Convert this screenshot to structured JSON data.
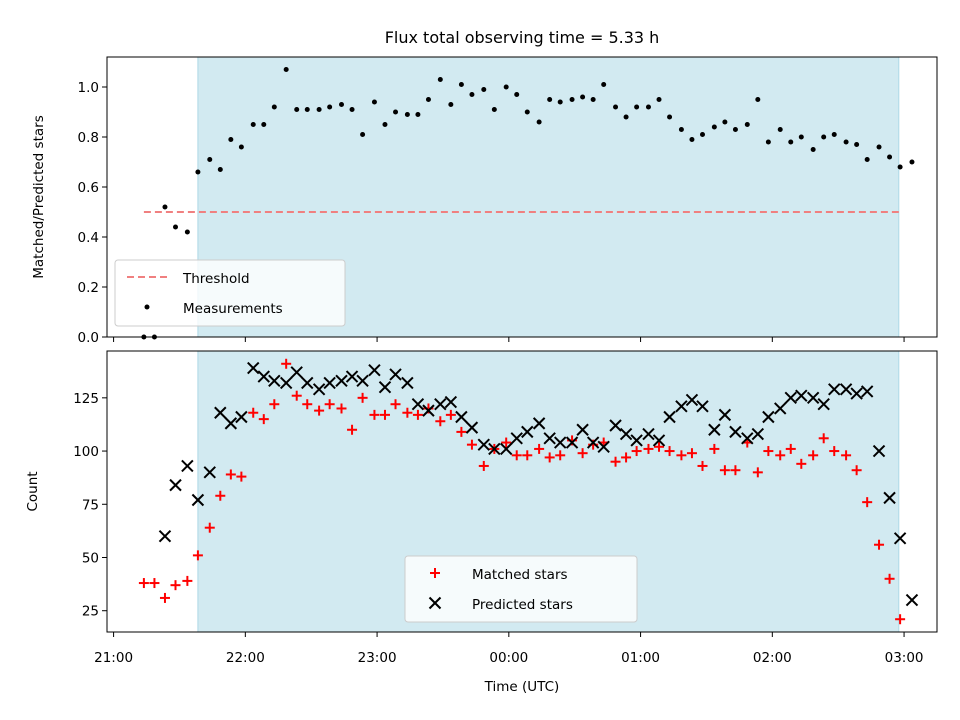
{
  "chart_data": [
    {
      "type": "scatter",
      "title": "Flux total observing time = 5.33 h",
      "xlabel": "",
      "ylabel": "Matched/Predicted stars",
      "ylim": [
        0,
        1.12
      ],
      "yticks": [
        "0.0",
        "0.2",
        "0.4",
        "0.6",
        "0.8",
        "1.0"
      ],
      "shaded_span_hours": [
        21.64,
        26.96
      ],
      "shade_color": "#add8e6",
      "legend_position": "lower-left",
      "threshold": {
        "name": "Threshold",
        "value": 0.5,
        "x_range": [
          21.23,
          26.96
        ],
        "color": "#f08080"
      },
      "series": [
        {
          "name": "Measurements",
          "color": "#000000",
          "points": [
            [
              21.23,
              0.0
            ],
            [
              21.31,
              0.0
            ],
            [
              21.39,
              0.52
            ],
            [
              21.47,
              0.44
            ],
            [
              21.56,
              0.42
            ],
            [
              21.64,
              0.66
            ],
            [
              21.73,
              0.71
            ],
            [
              21.81,
              0.67
            ],
            [
              21.89,
              0.79
            ],
            [
              21.97,
              0.76
            ],
            [
              22.06,
              0.85
            ],
            [
              22.14,
              0.85
            ],
            [
              22.22,
              0.92
            ],
            [
              22.31,
              1.07
            ],
            [
              22.39,
              0.91
            ],
            [
              22.47,
              0.91
            ],
            [
              22.56,
              0.91
            ],
            [
              22.64,
              0.92
            ],
            [
              22.73,
              0.93
            ],
            [
              22.81,
              0.91
            ],
            [
              22.89,
              0.81
            ],
            [
              22.98,
              0.94
            ],
            [
              23.06,
              0.85
            ],
            [
              23.14,
              0.9
            ],
            [
              23.23,
              0.89
            ],
            [
              23.31,
              0.89
            ],
            [
              23.39,
              0.95
            ],
            [
              23.48,
              1.03
            ],
            [
              23.56,
              0.93
            ],
            [
              23.64,
              1.01
            ],
            [
              23.72,
              0.97
            ],
            [
              23.81,
              0.99
            ],
            [
              23.89,
              0.91
            ],
            [
              23.98,
              1.0
            ],
            [
              24.06,
              0.97
            ],
            [
              24.14,
              0.9
            ],
            [
              24.23,
              0.86
            ],
            [
              24.31,
              0.95
            ],
            [
              24.39,
              0.94
            ],
            [
              24.48,
              0.95
            ],
            [
              24.56,
              0.96
            ],
            [
              24.64,
              0.95
            ],
            [
              24.72,
              1.01
            ],
            [
              24.81,
              0.92
            ],
            [
              24.89,
              0.88
            ],
            [
              24.97,
              0.92
            ],
            [
              25.06,
              0.92
            ],
            [
              25.14,
              0.95
            ],
            [
              25.22,
              0.88
            ],
            [
              25.31,
              0.83
            ],
            [
              25.39,
              0.79
            ],
            [
              25.47,
              0.81
            ],
            [
              25.56,
              0.84
            ],
            [
              25.64,
              0.86
            ],
            [
              25.72,
              0.83
            ],
            [
              25.81,
              0.85
            ],
            [
              25.89,
              0.95
            ],
            [
              25.97,
              0.78
            ],
            [
              26.06,
              0.83
            ],
            [
              26.14,
              0.78
            ],
            [
              26.22,
              0.8
            ],
            [
              26.31,
              0.75
            ],
            [
              26.39,
              0.8
            ],
            [
              26.47,
              0.81
            ],
            [
              26.56,
              0.78
            ],
            [
              26.64,
              0.77
            ],
            [
              26.72,
              0.71
            ],
            [
              26.81,
              0.76
            ],
            [
              26.89,
              0.72
            ],
            [
              26.97,
              0.68
            ],
            [
              27.06,
              0.7
            ]
          ]
        }
      ]
    },
    {
      "type": "scatter",
      "title": "",
      "xlabel": "Time (UTC)",
      "ylabel": "Count",
      "ylim": [
        15,
        147
      ],
      "yticks": [
        "25",
        "50",
        "75",
        "100",
        "125"
      ],
      "xlim_hours": [
        20.95,
        27.25
      ],
      "xticks": [
        "21:00",
        "22:00",
        "23:00",
        "00:00",
        "01:00",
        "02:00",
        "03:00"
      ],
      "xticks_hours": [
        21,
        22,
        23,
        24,
        25,
        26,
        27
      ],
      "shaded_span_hours": [
        21.64,
        26.96
      ],
      "shade_color": "#add8e6",
      "legend_position": "lower-center",
      "series": [
        {
          "name": "Matched stars",
          "marker": "plus",
          "color": "#ff0000",
          "points": [
            [
              21.23,
              38
            ],
            [
              21.31,
              38
            ],
            [
              21.39,
              31
            ],
            [
              21.47,
              37
            ],
            [
              21.56,
              39
            ],
            [
              21.64,
              51
            ],
            [
              21.73,
              64
            ],
            [
              21.81,
              79
            ],
            [
              21.89,
              89
            ],
            [
              21.97,
              88
            ],
            [
              22.06,
              118
            ],
            [
              22.14,
              115
            ],
            [
              22.22,
              122
            ],
            [
              22.31,
              141
            ],
            [
              22.39,
              126
            ],
            [
              22.47,
              122
            ],
            [
              22.56,
              119
            ],
            [
              22.64,
              122
            ],
            [
              22.73,
              120
            ],
            [
              22.81,
              110
            ],
            [
              22.89,
              125
            ],
            [
              22.98,
              117
            ],
            [
              23.06,
              117
            ],
            [
              23.14,
              122
            ],
            [
              23.23,
              118
            ],
            [
              23.31,
              117
            ],
            [
              23.39,
              120
            ],
            [
              23.48,
              114
            ],
            [
              23.56,
              117
            ],
            [
              23.64,
              109
            ],
            [
              23.72,
              103
            ],
            [
              23.81,
              93
            ],
            [
              23.89,
              101
            ],
            [
              23.98,
              104
            ],
            [
              24.06,
              98
            ],
            [
              24.14,
              98
            ],
            [
              24.23,
              101
            ],
            [
              24.31,
              97
            ],
            [
              24.39,
              98
            ],
            [
              24.48,
              105
            ],
            [
              24.56,
              99
            ],
            [
              24.64,
              103
            ],
            [
              24.72,
              104
            ],
            [
              24.81,
              95
            ],
            [
              24.89,
              97
            ],
            [
              24.97,
              100
            ],
            [
              25.06,
              101
            ],
            [
              25.14,
              102
            ],
            [
              25.22,
              100
            ],
            [
              25.31,
              98
            ],
            [
              25.39,
              99
            ],
            [
              25.47,
              93
            ],
            [
              25.56,
              101
            ],
            [
              25.64,
              91
            ],
            [
              25.72,
              91
            ],
            [
              25.81,
              104
            ],
            [
              25.89,
              90
            ],
            [
              25.97,
              100
            ],
            [
              26.06,
              98
            ],
            [
              26.14,
              101
            ],
            [
              26.22,
              94
            ],
            [
              26.31,
              98
            ],
            [
              26.39,
              106
            ],
            [
              26.47,
              100
            ],
            [
              26.56,
              98
            ],
            [
              26.64,
              91
            ],
            [
              26.72,
              76
            ],
            [
              26.81,
              56
            ],
            [
              26.89,
              40
            ],
            [
              26.97,
              21
            ]
          ]
        },
        {
          "name": "Predicted stars",
          "marker": "x",
          "color": "#000000",
          "points": [
            [
              21.39,
              60
            ],
            [
              21.47,
              84
            ],
            [
              21.56,
              93
            ],
            [
              21.64,
              77
            ],
            [
              21.73,
              90
            ],
            [
              21.81,
              118
            ],
            [
              21.89,
              113
            ],
            [
              21.97,
              116
            ],
            [
              22.06,
              139
            ],
            [
              22.14,
              135
            ],
            [
              22.22,
              133
            ],
            [
              22.31,
              132
            ],
            [
              22.39,
              137
            ],
            [
              22.47,
              132
            ],
            [
              22.56,
              129
            ],
            [
              22.64,
              132
            ],
            [
              22.73,
              133
            ],
            [
              22.81,
              135
            ],
            [
              22.89,
              133
            ],
            [
              22.98,
              138
            ],
            [
              23.06,
              130
            ],
            [
              23.14,
              136
            ],
            [
              23.23,
              132
            ],
            [
              23.31,
              122
            ],
            [
              23.39,
              119
            ],
            [
              23.48,
              122
            ],
            [
              23.56,
              123
            ],
            [
              23.64,
              116
            ],
            [
              23.72,
              111
            ],
            [
              23.81,
              103
            ],
            [
              23.89,
              101
            ],
            [
              23.98,
              101
            ],
            [
              24.06,
              106
            ],
            [
              24.14,
              109
            ],
            [
              24.23,
              113
            ],
            [
              24.31,
              106
            ],
            [
              24.39,
              104
            ],
            [
              24.48,
              104
            ],
            [
              24.56,
              110
            ],
            [
              24.64,
              104
            ],
            [
              24.72,
              102
            ],
            [
              24.81,
              112
            ],
            [
              24.89,
              108
            ],
            [
              24.97,
              105
            ],
            [
              25.06,
              108
            ],
            [
              25.14,
              105
            ],
            [
              25.22,
              116
            ],
            [
              25.31,
              121
            ],
            [
              25.39,
              124
            ],
            [
              25.47,
              121
            ],
            [
              25.56,
              110
            ],
            [
              25.64,
              117
            ],
            [
              25.72,
              109
            ],
            [
              25.81,
              106
            ],
            [
              25.89,
              108
            ],
            [
              25.97,
              116
            ],
            [
              26.06,
              120
            ],
            [
              26.14,
              125
            ],
            [
              26.22,
              126
            ],
            [
              26.31,
              125
            ],
            [
              26.39,
              122
            ],
            [
              26.47,
              129
            ],
            [
              26.56,
              129
            ],
            [
              26.64,
              127
            ],
            [
              26.72,
              128
            ],
            [
              26.81,
              100
            ],
            [
              26.89,
              78
            ],
            [
              26.97,
              59
            ],
            [
              27.06,
              30
            ]
          ]
        }
      ]
    }
  ]
}
